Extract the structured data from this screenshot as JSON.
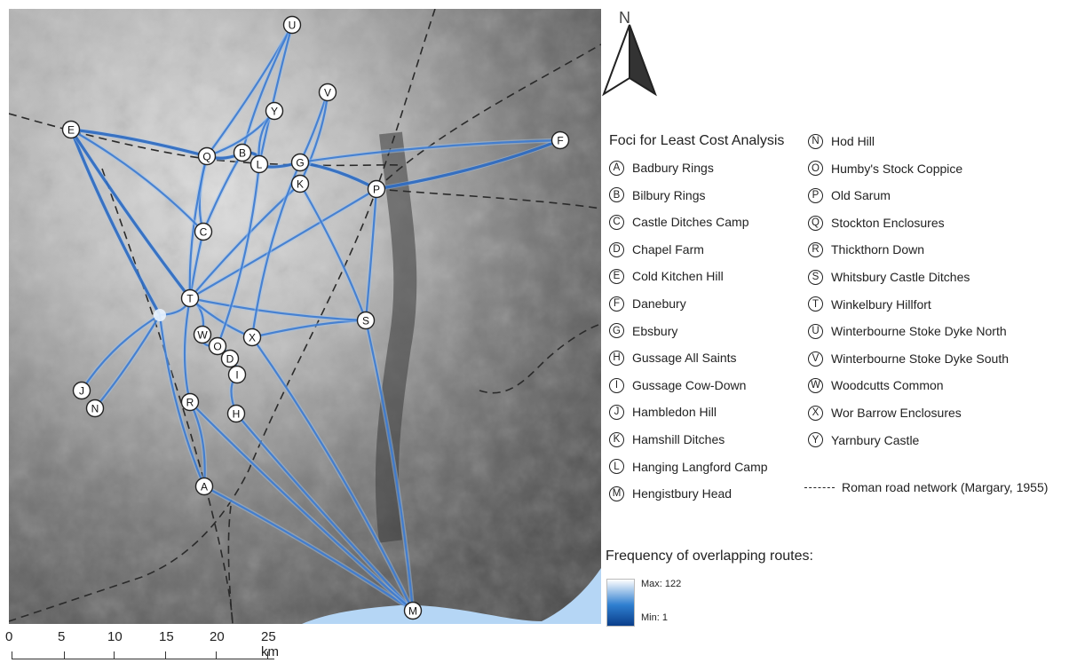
{
  "north_label": "N",
  "legend": {
    "foci_title": "Foci for Least Cost Analysis",
    "foci_left": [
      {
        "letter": "A",
        "name": "Badbury Rings"
      },
      {
        "letter": "B",
        "name": "Bilbury Rings"
      },
      {
        "letter": "C",
        "name": "Castle Ditches Camp"
      },
      {
        "letter": "D",
        "name": "Chapel Farm"
      },
      {
        "letter": "E",
        "name": "Cold Kitchen Hill"
      },
      {
        "letter": "F",
        "name": "Danebury"
      },
      {
        "letter": "G",
        "name": "Ebsbury"
      },
      {
        "letter": "H",
        "name": "Gussage All Saints"
      },
      {
        "letter": "I",
        "name": "Gussage Cow-Down"
      },
      {
        "letter": "J",
        "name": "Hambledon Hill"
      },
      {
        "letter": "K",
        "name": "Hamshill Ditches"
      },
      {
        "letter": "L",
        "name": "Hanging Langford Camp"
      },
      {
        "letter": "M",
        "name": "Hengistbury Head"
      }
    ],
    "foci_right": [
      {
        "letter": "N",
        "name": "Hod Hill"
      },
      {
        "letter": "O",
        "name": "Humby's Stock Coppice"
      },
      {
        "letter": "P",
        "name": "Old Sarum"
      },
      {
        "letter": "Q",
        "name": "Stockton Enclosures"
      },
      {
        "letter": "R",
        "name": "Thickthorn Down"
      },
      {
        "letter": "S",
        "name": "Whitsbury Castle Ditches"
      },
      {
        "letter": "T",
        "name": "Winkelbury Hillfort"
      },
      {
        "letter": "U",
        "name": "Winterbourne Stoke Dyke North"
      },
      {
        "letter": "V",
        "name": "Winterbourne Stoke Dyke South"
      },
      {
        "letter": "W",
        "name": "Woodcutts Common"
      },
      {
        "letter": "X",
        "name": "Wor Barrow Enclosures"
      },
      {
        "letter": "Y",
        "name": "Yarnbury Castle"
      }
    ],
    "road_label": "Roman road network (Margary, 1955)",
    "frequency_title": "Frequency of overlapping routes:",
    "frequency_max": "Max: 122",
    "frequency_min": "Min: 1"
  },
  "scale_bar": {
    "labels": [
      "0",
      "5",
      "10",
      "15",
      "20",
      "25 km"
    ]
  },
  "map_markers": [
    "A",
    "B",
    "C",
    "D",
    "E",
    "F",
    "G",
    "H",
    "I",
    "J",
    "K",
    "L",
    "M",
    "N",
    "O",
    "P",
    "Q",
    "R",
    "S",
    "T",
    "U",
    "V",
    "W",
    "X",
    "Y"
  ],
  "colors": {
    "route_blue": "#2f6fc4",
    "route_light": "#dcecff",
    "sea": "#b5d6f5",
    "road": "#333333"
  }
}
